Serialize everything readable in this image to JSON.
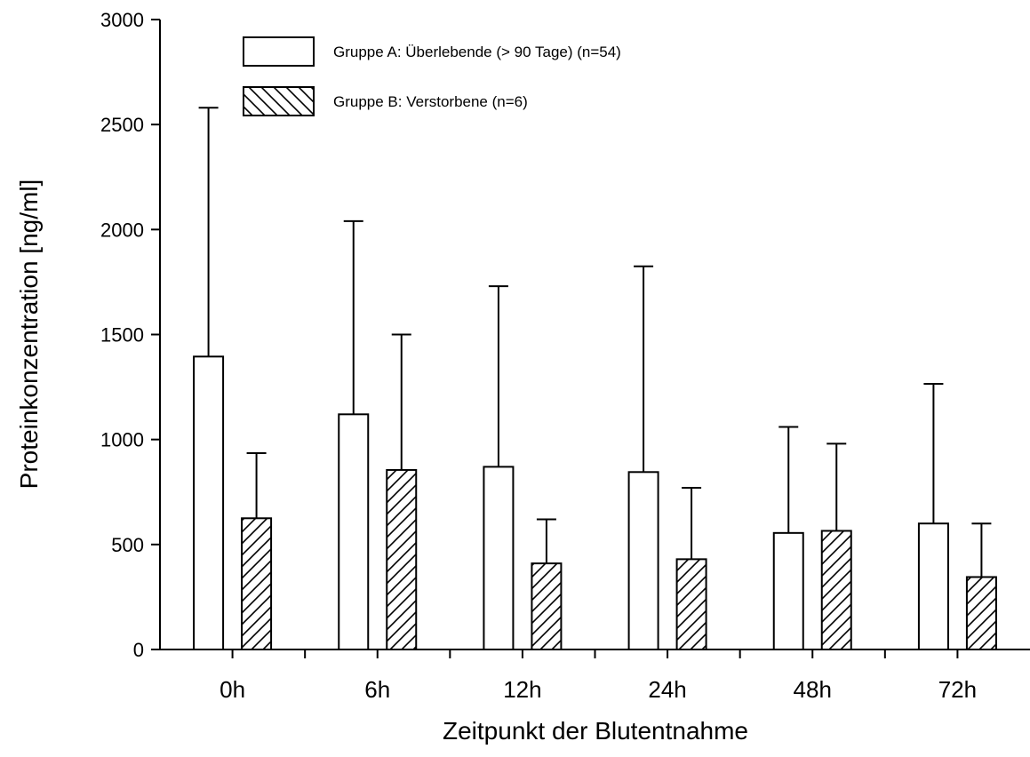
{
  "chart_data": {
    "type": "bar",
    "xlabel": "Zeitpunkt der Blutentnahme",
    "ylabel": "Proteinkonzentration [ng/ml]",
    "ylim": [
      0,
      3000
    ],
    "yticks": [
      "0",
      "500",
      "1000",
      "1500",
      "2000",
      "2500",
      "3000"
    ],
    "categories": [
      "0h",
      "6h",
      "12h",
      "24h",
      "48h",
      "72h"
    ],
    "error_bars": "upper",
    "legend_position": "top-left",
    "series": [
      {
        "name": "Gruppe A: Überlebende (> 90 Tage) (n=54)",
        "pattern": "none",
        "values": [
          1395,
          1120,
          870,
          845,
          555,
          600
        ],
        "error_upper": [
          2580,
          2040,
          1730,
          1825,
          1060,
          1265
        ]
      },
      {
        "name": "Gruppe B: Verstorbene (n=6)",
        "pattern": "hatched",
        "values": [
          625,
          855,
          410,
          430,
          565,
          345
        ],
        "error_upper": [
          935,
          1500,
          620,
          770,
          980,
          600
        ]
      }
    ]
  }
}
